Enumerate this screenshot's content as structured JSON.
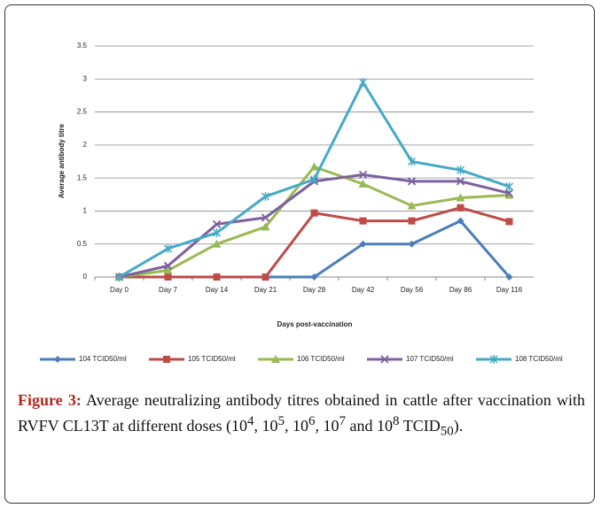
{
  "chart_data": {
    "type": "line",
    "categories": [
      "Day 0",
      "Day 7",
      "Day 14",
      "Day 21",
      "Day 28",
      "Day 42",
      "Day 56",
      "Day 86",
      "Day 116"
    ],
    "y_label": "Average antibody titre",
    "x_label": "Days post-vaccination",
    "ylim": [
      0,
      3.5
    ],
    "yticks": [
      0,
      0.5,
      1,
      1.5,
      2,
      2.5,
      3,
      3.5
    ],
    "grid": true,
    "legend": "bottom",
    "series": [
      {
        "name": "104 TCID50/ml",
        "color": "#4a7ebb",
        "values": [
          0,
          0,
          0,
          0,
          0,
          0.5,
          0.5,
          0.85,
          0
        ]
      },
      {
        "name": "105 TCID50/ml",
        "color": "#be4b48",
        "values": [
          0,
          0,
          0,
          0,
          0.97,
          0.85,
          0.85,
          1.05,
          0.84
        ]
      },
      {
        "name": "106 TCID50/ml",
        "color": "#98b954",
        "values": [
          0,
          0.1,
          0.5,
          0.76,
          1.67,
          1.41,
          1.08,
          1.2,
          1.24
        ]
      },
      {
        "name": "107 TCID50/ml",
        "color": "#7d60a0",
        "values": [
          0,
          0.17,
          0.8,
          0.9,
          1.45,
          1.55,
          1.45,
          1.45,
          1.27
        ]
      },
      {
        "name": "108 TCID50/ml",
        "color": "#46aac5",
        "values": [
          0,
          0.43,
          0.67,
          1.22,
          1.48,
          2.95,
          1.75,
          1.62,
          1.37
        ]
      }
    ]
  },
  "caption": {
    "label": "Figure 3:",
    "parts": [
      " Average neutralizing antibody titres obtained in cattle after vaccination with RVFV CL13T at different doses (10",
      "4",
      ", 10",
      "5",
      ", 10",
      "6",
      ", 10",
      "7",
      " and 10",
      "8",
      " TCID",
      "50",
      ")."
    ]
  }
}
